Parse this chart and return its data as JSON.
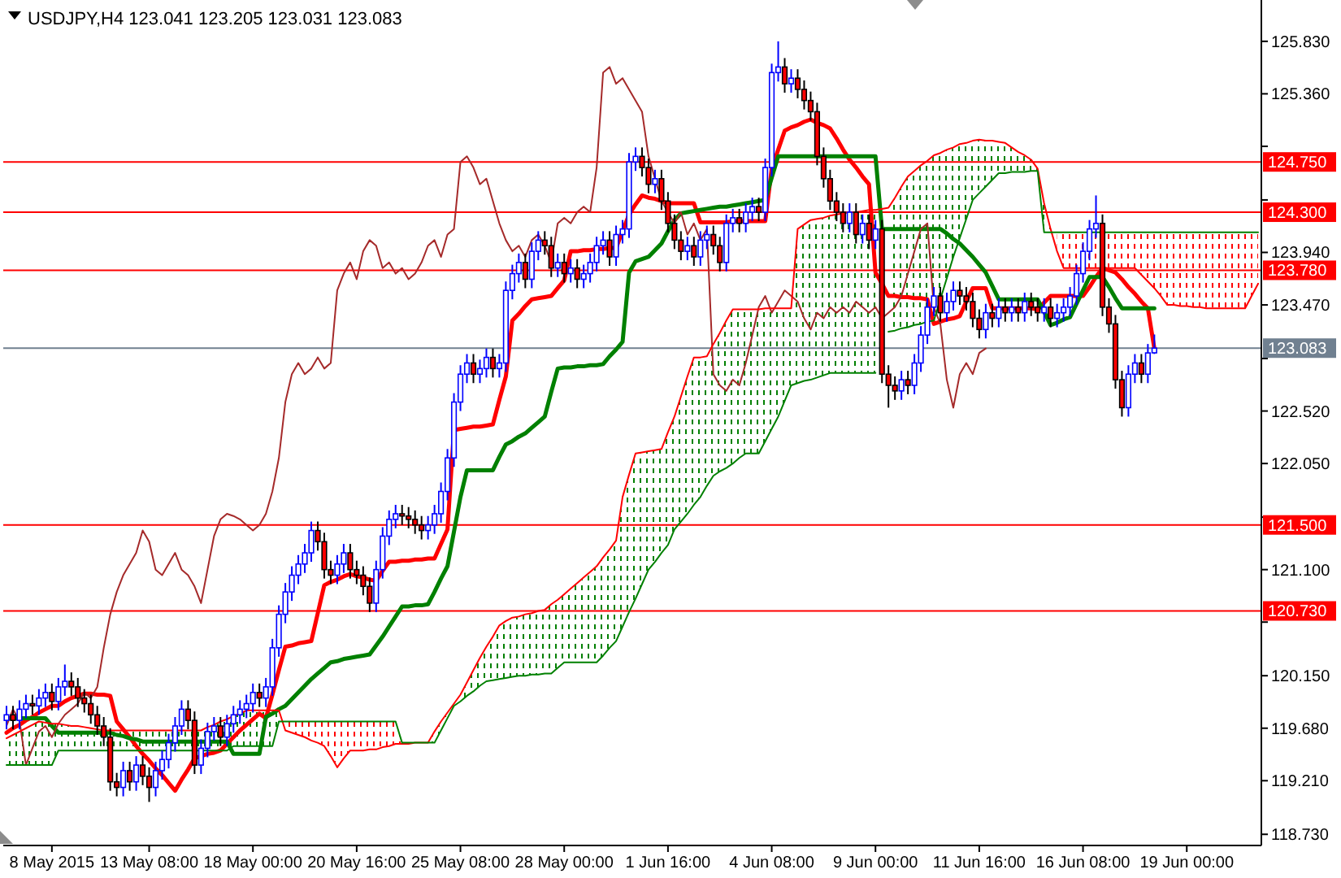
{
  "chart_data": {
    "type": "candlestick",
    "title": "USDJPY,H4 123.041 123.205 123.031 123.083",
    "categories": [
      null,
      null,
      null,
      null,
      null,
      null,
      null,
      "8 May 2015",
      null,
      null,
      null,
      null,
      null,
      null,
      null,
      null,
      null,
      null,
      null,
      null,
      null,
      null,
      "13 May 08:00",
      null,
      null,
      null,
      null,
      null,
      null,
      null,
      null,
      null,
      null,
      null,
      null,
      null,
      null,
      null,
      "18 May 00:00",
      null,
      null,
      null,
      null,
      null,
      null,
      null,
      null,
      null,
      null,
      null,
      null,
      null,
      null,
      null,
      "20 May 16:00",
      null,
      null,
      null,
      null,
      null,
      null,
      null,
      null,
      null,
      null,
      null,
      null,
      null,
      null,
      null,
      "25 May 08:00",
      null,
      null,
      null,
      null,
      null,
      null,
      null,
      null,
      null,
      null,
      null,
      null,
      null,
      null,
      null,
      "28 May 00:00",
      null,
      null,
      null,
      null,
      null,
      null,
      null,
      null,
      null,
      null,
      null,
      null,
      null,
      null,
      null,
      "1 Jun 16:00",
      null,
      null,
      null,
      null,
      null,
      null,
      null,
      null,
      null,
      null,
      null,
      null,
      null,
      null,
      null,
      "4 Jun 08:00",
      null,
      null,
      null,
      null,
      null,
      null,
      null,
      null,
      null,
      null,
      null,
      null,
      null,
      null,
      null,
      "9 Jun 00:00",
      null,
      null,
      null,
      null,
      null,
      null,
      null,
      null,
      null,
      null,
      null,
      null,
      null,
      null,
      null,
      "11 Jun 16:00",
      null,
      null,
      null,
      null,
      null,
      null,
      null,
      null,
      null,
      null,
      null,
      null,
      null,
      null,
      null,
      "16 Jun 08:00",
      null,
      null,
      null,
      null,
      null,
      null,
      null,
      null,
      null,
      null,
      null,
      null,
      null,
      null,
      null,
      "19 Jun 00:00",
      null,
      null,
      null,
      null,
      null,
      null,
      null,
      null,
      null,
      null,
      null
    ],
    "ohlc": [
      [
        119.75,
        119.88,
        119.67,
        119.8
      ],
      [
        119.8,
        119.88,
        119.67,
        119.75
      ],
      [
        119.75,
        119.93,
        119.67,
        119.85
      ],
      [
        119.85,
        119.98,
        119.77,
        119.9
      ],
      [
        119.9,
        119.98,
        119.8,
        119.88
      ],
      [
        119.88,
        120.03,
        119.8,
        119.95
      ],
      [
        119.95,
        120.08,
        119.87,
        120.0
      ],
      [
        120.0,
        120.08,
        119.84,
        119.92
      ],
      [
        119.92,
        120.13,
        119.84,
        120.05
      ],
      [
        120.05,
        120.25,
        119.97,
        120.1
      ],
      [
        120.1,
        120.18,
        119.97,
        120.05
      ],
      [
        120.05,
        120.13,
        119.87,
        119.95
      ],
      [
        119.95,
        120.03,
        119.82,
        119.9
      ],
      [
        119.9,
        119.98,
        119.72,
        119.8
      ],
      [
        119.8,
        119.88,
        119.62,
        119.7
      ],
      [
        119.7,
        119.78,
        119.52,
        119.6
      ],
      [
        119.6,
        119.68,
        119.12,
        119.2
      ],
      [
        119.2,
        119.28,
        119.07,
        119.15
      ],
      [
        119.15,
        119.38,
        119.07,
        119.3
      ],
      [
        119.3,
        119.38,
        119.12,
        119.2
      ],
      [
        119.2,
        119.43,
        119.12,
        119.35
      ],
      [
        119.35,
        119.43,
        119.17,
        119.25
      ],
      [
        119.25,
        119.33,
        119.02,
        119.15
      ],
      [
        119.15,
        119.38,
        119.07,
        119.3
      ],
      [
        119.3,
        119.48,
        119.22,
        119.4
      ],
      [
        119.4,
        119.63,
        119.32,
        119.55
      ],
      [
        119.55,
        119.78,
        119.47,
        119.7
      ],
      [
        119.7,
        119.93,
        119.62,
        119.85
      ],
      [
        119.85,
        119.93,
        119.67,
        119.75
      ],
      [
        119.75,
        119.83,
        119.27,
        119.35
      ],
      [
        119.35,
        119.58,
        119.27,
        119.5
      ],
      [
        119.5,
        119.73,
        119.42,
        119.65
      ],
      [
        119.65,
        119.78,
        119.57,
        119.7
      ],
      [
        119.7,
        119.78,
        119.52,
        119.6
      ],
      [
        119.6,
        119.8,
        119.52,
        119.72
      ],
      [
        119.72,
        119.88,
        119.64,
        119.8
      ],
      [
        119.8,
        119.93,
        119.72,
        119.85
      ],
      [
        119.85,
        119.98,
        119.77,
        119.9
      ],
      [
        119.9,
        120.08,
        119.82,
        120.0
      ],
      [
        120.0,
        120.08,
        119.87,
        119.95
      ],
      [
        119.95,
        120.13,
        119.87,
        120.05
      ],
      [
        120.05,
        120.48,
        119.97,
        120.4
      ],
      [
        120.4,
        120.78,
        120.32,
        120.7
      ],
      [
        120.7,
        120.98,
        120.62,
        120.9
      ],
      [
        120.9,
        121.13,
        120.82,
        121.05
      ],
      [
        121.05,
        121.23,
        120.97,
        121.15
      ],
      [
        121.15,
        121.33,
        121.07,
        121.25
      ],
      [
        121.25,
        121.53,
        121.17,
        121.45
      ],
      [
        121.45,
        121.53,
        121.27,
        121.35
      ],
      [
        121.35,
        121.43,
        121.02,
        121.1
      ],
      [
        121.1,
        121.18,
        120.97,
        121.05
      ],
      [
        121.05,
        121.23,
        120.97,
        121.15
      ],
      [
        121.15,
        121.33,
        121.07,
        121.25
      ],
      [
        121.25,
        121.33,
        121.02,
        121.1
      ],
      [
        121.1,
        121.18,
        120.97,
        121.05
      ],
      [
        121.05,
        121.13,
        120.87,
        120.95
      ],
      [
        120.95,
        121.03,
        120.72,
        120.8
      ],
      [
        120.8,
        121.18,
        120.72,
        121.1
      ],
      [
        121.1,
        121.48,
        121.02,
        121.4
      ],
      [
        121.4,
        121.63,
        121.32,
        121.55
      ],
      [
        121.55,
        121.68,
        121.47,
        121.6
      ],
      [
        121.6,
        121.68,
        121.5,
        121.58
      ],
      [
        121.58,
        121.66,
        121.47,
        121.55
      ],
      [
        121.55,
        121.63,
        121.42,
        121.5
      ],
      [
        121.5,
        121.58,
        121.37,
        121.45
      ],
      [
        121.45,
        121.58,
        121.37,
        121.5
      ],
      [
        121.5,
        121.68,
        121.42,
        121.6
      ],
      [
        121.6,
        121.88,
        121.52,
        121.8
      ],
      [
        121.8,
        122.18,
        121.72,
        122.1
      ],
      [
        122.1,
        122.68,
        122.02,
        122.6
      ],
      [
        122.6,
        122.93,
        122.52,
        122.85
      ],
      [
        122.85,
        123.03,
        122.77,
        122.95
      ],
      [
        122.95,
        123.03,
        122.77,
        122.85
      ],
      [
        122.85,
        122.98,
        122.77,
        122.9
      ],
      [
        122.9,
        123.08,
        122.82,
        123.0
      ],
      [
        123.0,
        123.08,
        122.82,
        122.9
      ],
      [
        122.9,
        123.03,
        122.82,
        122.95
      ],
      [
        122.95,
        123.68,
        122.87,
        123.6
      ],
      [
        123.6,
        123.83,
        123.52,
        123.75
      ],
      [
        123.75,
        123.93,
        123.67,
        123.85
      ],
      [
        123.85,
        123.93,
        123.62,
        123.7
      ],
      [
        123.7,
        124.03,
        123.62,
        123.95
      ],
      [
        123.95,
        124.13,
        123.87,
        124.05
      ],
      [
        124.05,
        124.13,
        123.92,
        124.0
      ],
      [
        124.0,
        124.08,
        123.72,
        123.8
      ],
      [
        123.8,
        123.93,
        123.72,
        123.85
      ],
      [
        123.85,
        123.93,
        123.67,
        123.75
      ],
      [
        123.75,
        123.88,
        123.67,
        123.8
      ],
      [
        123.8,
        123.88,
        123.62,
        123.7
      ],
      [
        123.7,
        123.83,
        123.62,
        123.75
      ],
      [
        123.75,
        123.93,
        123.67,
        123.85
      ],
      [
        123.85,
        124.08,
        123.77,
        124.0
      ],
      [
        124.0,
        124.13,
        123.92,
        124.05
      ],
      [
        124.05,
        124.13,
        123.82,
        123.9
      ],
      [
        123.9,
        124.18,
        123.82,
        124.1
      ],
      [
        124.1,
        124.23,
        124.02,
        124.15
      ],
      [
        124.15,
        124.83,
        124.07,
        124.75
      ],
      [
        124.75,
        124.88,
        124.67,
        124.8
      ],
      [
        124.8,
        124.88,
        124.62,
        124.7
      ],
      [
        124.7,
        124.78,
        124.47,
        124.55
      ],
      [
        124.55,
        124.68,
        124.47,
        124.6
      ],
      [
        124.6,
        124.68,
        124.32,
        124.4
      ],
      [
        124.4,
        124.48,
        124.12,
        124.2
      ],
      [
        124.2,
        124.28,
        123.97,
        124.05
      ],
      [
        124.05,
        124.13,
        123.87,
        123.95
      ],
      [
        123.95,
        124.08,
        123.87,
        124.0
      ],
      [
        124.0,
        124.08,
        123.82,
        123.9
      ],
      [
        123.9,
        124.13,
        123.82,
        124.05
      ],
      [
        124.05,
        124.18,
        123.97,
        124.1
      ],
      [
        124.1,
        124.18,
        123.92,
        124.0
      ],
      [
        124.0,
        124.08,
        123.77,
        123.85
      ],
      [
        123.85,
        124.28,
        123.77,
        124.2
      ],
      [
        124.2,
        124.33,
        124.12,
        124.25
      ],
      [
        124.25,
        124.33,
        124.12,
        124.2
      ],
      [
        124.2,
        124.38,
        124.12,
        124.3
      ],
      [
        124.3,
        124.43,
        124.22,
        124.35
      ],
      [
        124.35,
        124.43,
        124.22,
        124.3
      ],
      [
        124.3,
        124.78,
        124.22,
        124.7
      ],
      [
        124.7,
        125.63,
        124.62,
        125.55
      ],
      [
        125.55,
        125.83,
        125.47,
        125.6
      ],
      [
        125.6,
        125.68,
        125.37,
        125.45
      ],
      [
        125.45,
        125.58,
        125.37,
        125.5
      ],
      [
        125.5,
        125.58,
        125.32,
        125.4
      ],
      [
        125.4,
        125.48,
        125.22,
        125.3
      ],
      [
        125.3,
        125.38,
        125.12,
        125.2
      ],
      [
        125.2,
        125.28,
        124.72,
        124.8
      ],
      [
        124.8,
        124.88,
        124.52,
        124.6
      ],
      [
        124.6,
        124.68,
        124.32,
        124.4
      ],
      [
        124.4,
        124.48,
        124.22,
        124.3
      ],
      [
        124.3,
        124.38,
        124.12,
        124.2
      ],
      [
        124.2,
        124.38,
        124.12,
        124.3
      ],
      [
        124.3,
        124.38,
        124.02,
        124.1
      ],
      [
        124.1,
        124.28,
        124.02,
        124.2
      ],
      [
        124.2,
        124.28,
        123.97,
        124.05
      ],
      [
        124.05,
        124.23,
        123.97,
        124.15
      ],
      [
        124.15,
        124.23,
        122.77,
        122.85
      ],
      [
        122.85,
        122.93,
        122.55,
        122.75
      ],
      [
        122.75,
        122.83,
        122.62,
        122.7
      ],
      [
        122.7,
        122.88,
        122.62,
        122.8
      ],
      [
        122.8,
        122.88,
        122.67,
        122.75
      ],
      [
        122.75,
        123.03,
        122.67,
        122.95
      ],
      [
        122.95,
        123.28,
        122.87,
        123.2
      ],
      [
        123.2,
        123.53,
        123.12,
        123.45
      ],
      [
        123.45,
        123.63,
        123.37,
        123.55
      ],
      [
        123.55,
        123.63,
        123.32,
        123.4
      ],
      [
        123.4,
        123.58,
        123.32,
        123.5
      ],
      [
        123.5,
        123.68,
        123.42,
        123.6
      ],
      [
        123.6,
        123.68,
        123.47,
        123.55
      ],
      [
        123.55,
        123.63,
        123.42,
        123.5
      ],
      [
        123.5,
        123.58,
        123.27,
        123.35
      ],
      [
        123.35,
        123.43,
        123.17,
        123.25
      ],
      [
        123.25,
        123.48,
        123.17,
        123.4
      ],
      [
        123.4,
        123.48,
        123.27,
        123.35
      ],
      [
        123.35,
        123.53,
        123.27,
        123.45
      ],
      [
        123.45,
        123.53,
        123.32,
        123.4
      ],
      [
        123.4,
        123.53,
        123.32,
        123.45
      ],
      [
        123.45,
        123.53,
        123.32,
        123.4
      ],
      [
        123.4,
        123.58,
        123.32,
        123.5
      ],
      [
        123.5,
        123.58,
        123.37,
        123.45
      ],
      [
        123.45,
        123.53,
        123.32,
        123.4
      ],
      [
        123.4,
        123.53,
        123.32,
        123.45
      ],
      [
        123.45,
        123.53,
        123.27,
        123.35
      ],
      [
        123.35,
        123.48,
        123.27,
        123.4
      ],
      [
        123.4,
        123.53,
        123.32,
        123.45
      ],
      [
        123.45,
        123.63,
        123.37,
        123.55
      ],
      [
        123.55,
        123.83,
        123.47,
        123.75
      ],
      [
        123.75,
        124.03,
        123.67,
        123.95
      ],
      [
        123.95,
        124.23,
        123.87,
        124.15
      ],
      [
        124.15,
        124.45,
        124.07,
        124.2
      ],
      [
        124.2,
        124.28,
        123.37,
        123.45
      ],
      [
        123.45,
        123.53,
        123.22,
        123.3
      ],
      [
        123.3,
        123.38,
        122.72,
        122.8
      ],
      [
        122.8,
        122.88,
        122.47,
        122.55
      ],
      [
        122.55,
        122.93,
        122.47,
        122.85
      ],
      [
        122.85,
        123.03,
        122.77,
        122.95
      ],
      [
        122.95,
        123.03,
        122.77,
        122.85
      ],
      [
        122.85,
        123.12,
        122.77,
        123.04
      ],
      [
        123.041,
        123.205,
        123.031,
        123.083
      ],
      null,
      null,
      null,
      null,
      null,
      null,
      null,
      null,
      null,
      null,
      null,
      null,
      null,
      null,
      null,
      null
    ],
    "series": [
      {
        "type": "line",
        "color": "#ff0000",
        "values": [
          119.64,
          119.68,
          119.71,
          119.75,
          119.78,
          119.82,
          119.85,
          119.88,
          119.88,
          119.92,
          119.95,
          119.97,
          119.99,
          119.99,
          119.98,
          119.98,
          119.97,
          119.74,
          119.67,
          119.6,
          119.52,
          119.45,
          119.39,
          119.32,
          119.26,
          119.19,
          119.12,
          119.22,
          119.31,
          119.41,
          119.43,
          119.45,
          119.46,
          119.48,
          119.54,
          119.6,
          119.66,
          119.71,
          119.76,
          119.81,
          119.77,
          119.98,
          120.2,
          120.41,
          120.42,
          120.44,
          120.45,
          120.46,
          120.71,
          120.96,
          120.99,
          121.01,
          121.04,
          121.06,
          121.04,
          121.03,
          121.01,
          121.0,
          121.09,
          121.17,
          121.17,
          121.18,
          121.18,
          121.19,
          121.19,
          121.2,
          121.2,
          121.33,
          121.46,
          122.35,
          122.36,
          122.37,
          122.38,
          122.38,
          122.39,
          122.4,
          122.62,
          122.83,
          123.33,
          123.39,
          123.46,
          123.52,
          123.53,
          123.54,
          123.55,
          123.62,
          123.69,
          123.95,
          123.95,
          123.96,
          123.96,
          123.97,
          123.97,
          123.98,
          123.98,
          124.13,
          124.28,
          124.37,
          124.45,
          124.43,
          124.42,
          124.4,
          124.38,
          124.38,
          124.38,
          124.38,
          124.38,
          124.21,
          124.21,
          124.21,
          124.21,
          124.21,
          124.22,
          124.22,
          124.22,
          124.22,
          124.22,
          124.22,
          124.69,
          124.86,
          125.03,
          125.06,
          125.08,
          125.11,
          125.13,
          125.1,
          125.08,
          125.05,
          124.96,
          124.86,
          124.77,
          124.7,
          124.62,
          124.55,
          123.76,
          123.66,
          123.55,
          123.55,
          123.54,
          123.54,
          123.53,
          123.53,
          123.52,
          123.3,
          123.32,
          123.34,
          123.35,
          123.37,
          123.5,
          123.62,
          123.62,
          123.62,
          123.44,
          123.44,
          123.44,
          123.44,
          123.44,
          123.44,
          123.44,
          123.43,
          123.49,
          123.55,
          123.55,
          123.55,
          123.55,
          123.55,
          123.55,
          123.63,
          123.72,
          123.8,
          123.78,
          123.76,
          123.7,
          123.63,
          123.57,
          123.5,
          123.44,
          123.08,
          null,
          null,
          null,
          null,
          null,
          null,
          null,
          null,
          null,
          null,
          null,
          null,
          null,
          null,
          null,
          null
        ]
      },
      {
        "type": "line",
        "color": "#008000",
        "values": [
          119.77,
          119.77,
          119.77,
          119.77,
          119.77,
          119.77,
          119.77,
          119.7,
          119.64,
          119.64,
          119.64,
          119.64,
          119.64,
          119.64,
          119.64,
          119.64,
          119.64,
          119.62,
          119.61,
          119.59,
          119.58,
          119.56,
          119.56,
          119.56,
          119.56,
          119.56,
          119.56,
          119.56,
          119.56,
          119.56,
          119.56,
          119.56,
          119.56,
          119.56,
          119.56,
          119.45,
          119.45,
          119.45,
          119.45,
          119.45,
          119.78,
          119.81,
          119.85,
          119.88,
          119.94,
          120.0,
          120.06,
          120.12,
          120.17,
          120.22,
          120.27,
          120.28,
          120.3,
          120.31,
          120.32,
          120.33,
          120.34,
          120.42,
          120.5,
          120.59,
          120.68,
          120.77,
          120.77,
          120.78,
          120.78,
          120.79,
          120.9,
          121.02,
          121.13,
          121.44,
          121.75,
          121.99,
          121.99,
          121.99,
          121.99,
          121.99,
          122.11,
          122.22,
          122.25,
          122.29,
          122.32,
          122.37,
          122.42,
          122.47,
          122.69,
          122.9,
          122.91,
          122.91,
          122.92,
          122.92,
          122.93,
          122.93,
          122.94,
          123.01,
          123.07,
          123.14,
          123.76,
          123.86,
          123.88,
          123.9,
          123.96,
          124.02,
          124.13,
          124.23,
          124.29,
          124.3,
          124.31,
          124.32,
          124.33,
          124.34,
          124.35,
          124.35,
          124.36,
          124.37,
          124.38,
          124.39,
          124.4,
          124.41,
          124.61,
          124.8,
          124.8,
          124.8,
          124.8,
          124.8,
          124.8,
          124.8,
          124.8,
          124.8,
          124.8,
          124.8,
          124.8,
          124.8,
          124.8,
          124.8,
          124.8,
          124.15,
          124.15,
          124.15,
          124.15,
          124.15,
          124.15,
          124.15,
          124.15,
          124.15,
          124.15,
          124.11,
          124.06,
          124.02,
          123.96,
          123.9,
          123.83,
          123.76,
          123.64,
          123.52,
          123.52,
          123.52,
          123.52,
          123.52,
          123.52,
          123.52,
          123.41,
          123.29,
          123.31,
          123.34,
          123.36,
          123.48,
          123.6,
          123.72,
          123.72,
          123.72,
          123.63,
          123.53,
          123.44,
          123.44,
          123.44,
          123.44,
          123.44,
          123.44,
          null,
          null,
          null,
          null,
          null,
          null,
          null,
          null,
          null,
          null,
          null,
          null,
          null,
          null,
          null,
          null
        ]
      },
      {
        "type": "line",
        "color": "#a52a2a",
        "values": [
          119.7,
          119.85,
          119.75,
          119.35,
          119.5,
          119.65,
          119.7,
          119.6,
          119.72,
          119.8,
          119.85,
          119.9,
          120.0,
          119.95,
          120.05,
          120.4,
          120.7,
          120.9,
          121.05,
          121.15,
          121.25,
          121.45,
          121.35,
          121.1,
          121.05,
          121.15,
          121.25,
          121.1,
          121.05,
          120.95,
          120.8,
          121.1,
          121.4,
          121.55,
          121.6,
          121.58,
          121.55,
          121.5,
          121.45,
          121.5,
          121.6,
          121.8,
          122.1,
          122.6,
          122.85,
          122.95,
          122.85,
          122.9,
          123.0,
          122.9,
          122.95,
          123.6,
          123.75,
          123.85,
          123.7,
          123.95,
          124.05,
          124.0,
          123.8,
          123.85,
          123.75,
          123.8,
          123.7,
          123.75,
          123.85,
          124.0,
          124.05,
          123.9,
          124.1,
          124.15,
          124.75,
          124.8,
          124.7,
          124.55,
          124.6,
          124.4,
          124.2,
          124.05,
          123.95,
          124.0,
          123.9,
          124.05,
          124.1,
          124.0,
          123.85,
          124.2,
          124.25,
          124.2,
          124.3,
          124.35,
          124.3,
          124.7,
          125.55,
          125.6,
          125.45,
          125.5,
          125.4,
          125.3,
          125.2,
          124.8,
          124.6,
          124.4,
          124.3,
          124.2,
          124.3,
          124.1,
          124.2,
          124.05,
          124.15,
          122.85,
          122.75,
          122.7,
          122.8,
          122.75,
          122.95,
          123.2,
          123.45,
          123.55,
          123.4,
          123.5,
          123.6,
          123.55,
          123.5,
          123.35,
          123.25,
          123.4,
          123.35,
          123.45,
          123.4,
          123.45,
          123.4,
          123.5,
          123.45,
          123.4,
          123.45,
          123.35,
          123.4,
          123.45,
          123.55,
          123.75,
          123.95,
          124.15,
          124.2,
          123.45,
          123.3,
          122.8,
          122.55,
          122.85,
          122.95,
          122.85,
          123.04,
          123.08,
          null,
          null,
          null,
          null,
          null,
          null,
          null,
          null,
          null,
          null,
          null,
          null,
          null,
          null,
          null,
          null,
          null,
          null,
          null,
          null,
          null,
          null,
          null,
          null,
          null,
          null,
          null,
          null,
          null,
          null,
          null,
          null,
          null,
          null,
          null,
          null,
          null,
          null,
          null,
          null,
          null,
          null
        ]
      },
      {
        "type": "line",
        "color": "#ff0000",
        "values": [
          119.59,
          119.62,
          119.65,
          119.68,
          119.71,
          119.74,
          119.73,
          119.72,
          119.72,
          119.71,
          119.7,
          119.7,
          119.69,
          119.68,
          119.67,
          119.66,
          119.66,
          119.66,
          119.66,
          119.66,
          119.66,
          119.66,
          119.66,
          119.66,
          119.66,
          119.66,
          119.66,
          119.66,
          119.66,
          119.66,
          119.66,
          119.69,
          119.71,
          119.74,
          119.76,
          119.79,
          119.81,
          119.84,
          119.84,
          119.84,
          119.84,
          119.84,
          119.84,
          119.66,
          119.64,
          119.62,
          119.6,
          119.57,
          119.55,
          119.52,
          119.43,
          119.33,
          119.41,
          119.48,
          119.48,
          119.48,
          119.49,
          119.49,
          119.51,
          119.52,
          119.54,
          119.54,
          119.54,
          119.55,
          119.55,
          119.55,
          119.65,
          119.74,
          119.82,
          119.9,
          119.98,
          120.09,
          120.2,
          120.31,
          120.41,
          120.5,
          120.6,
          120.64,
          120.67,
          120.68,
          120.7,
          120.71,
          120.73,
          120.74,
          120.79,
          120.83,
          120.88,
          120.93,
          120.98,
          121.03,
          121.08,
          121.13,
          121.21,
          121.28,
          121.36,
          121.75,
          121.95,
          122.14,
          122.15,
          122.16,
          122.17,
          122.18,
          122.33,
          122.47,
          122.65,
          122.83,
          123.0,
          123.0,
          123.01,
          123.12,
          123.22,
          123.33,
          123.43,
          123.43,
          123.43,
          123.43,
          123.43,
          123.44,
          123.44,
          123.44,
          123.44,
          123.44,
          124.15,
          124.19,
          124.23,
          124.24,
          124.25,
          124.27,
          124.28,
          124.29,
          124.3,
          124.3,
          124.31,
          124.32,
          124.32,
          124.33,
          124.34,
          124.43,
          124.53,
          124.62,
          124.67,
          124.72,
          124.76,
          124.81,
          124.83,
          124.86,
          124.88,
          124.91,
          124.92,
          124.94,
          124.95,
          124.94,
          124.94,
          124.93,
          124.92,
          124.88,
          124.84,
          124.81,
          124.77,
          124.69,
          124.38,
          124.15,
          123.95,
          123.8,
          123.8,
          123.8,
          123.8,
          123.8,
          123.8,
          123.8,
          123.8,
          123.8,
          123.8,
          123.8,
          123.8,
          123.74,
          123.68,
          123.62,
          123.55,
          123.47,
          123.47,
          123.46,
          123.46,
          123.45,
          123.45,
          123.44,
          123.44,
          123.44,
          123.44,
          123.44,
          123.44,
          123.44,
          123.55,
          123.66
        ]
      },
      {
        "type": "line",
        "color": "#008000",
        "values": [
          119.35,
          119.35,
          119.35,
          119.35,
          119.35,
          119.35,
          119.35,
          119.35,
          119.48,
          119.48,
          119.48,
          119.48,
          119.48,
          119.48,
          119.48,
          119.48,
          119.48,
          119.48,
          119.48,
          119.48,
          119.48,
          119.48,
          119.48,
          119.48,
          119.48,
          119.48,
          119.48,
          119.48,
          119.48,
          119.48,
          119.48,
          119.48,
          119.48,
          119.48,
          119.48,
          119.52,
          119.52,
          119.52,
          119.52,
          119.52,
          119.52,
          119.52,
          119.74,
          119.74,
          119.74,
          119.74,
          119.74,
          119.74,
          119.74,
          119.74,
          119.74,
          119.74,
          119.74,
          119.74,
          119.74,
          119.74,
          119.74,
          119.74,
          119.74,
          119.74,
          119.74,
          119.55,
          119.55,
          119.55,
          119.55,
          119.55,
          119.55,
          119.66,
          119.77,
          119.88,
          119.92,
          119.97,
          120.01,
          120.06,
          120.1,
          120.11,
          120.12,
          120.13,
          120.14,
          120.15,
          120.15,
          120.16,
          120.16,
          120.17,
          120.17,
          120.22,
          120.27,
          120.27,
          120.27,
          120.27,
          120.27,
          120.27,
          120.33,
          120.4,
          120.46,
          120.59,
          120.72,
          120.84,
          120.97,
          121.1,
          121.17,
          121.25,
          121.32,
          121.46,
          121.53,
          121.6,
          121.68,
          121.75,
          121.85,
          121.94,
          121.98,
          122.01,
          122.05,
          122.1,
          122.14,
          122.14,
          122.14,
          122.25,
          122.36,
          122.47,
          122.61,
          122.75,
          122.77,
          122.79,
          122.8,
          122.82,
          122.84,
          122.86,
          122.86,
          122.86,
          122.86,
          122.86,
          122.86,
          122.86,
          122.86,
          null,
          123.23,
          123.24,
          123.26,
          123.27,
          123.29,
          123.3,
          123.32,
          123.33,
          123.52,
          123.71,
          123.9,
          124.07,
          124.24,
          124.41,
          124.47,
          124.53,
          124.59,
          124.65,
          124.65,
          124.66,
          124.66,
          124.66,
          124.67,
          124.67,
          124.12,
          124.12,
          124.12,
          124.12,
          124.12,
          124.12,
          124.12,
          124.12,
          124.12,
          124.12,
          124.12,
          124.12,
          124.12,
          124.12,
          124.12,
          124.12,
          124.12,
          124.12,
          124.12,
          124.12,
          124.12,
          124.12,
          124.12,
          124.12,
          124.12,
          124.12,
          124.12,
          124.12,
          124.12,
          124.12,
          124.12,
          124.12,
          124.12,
          124.12
        ]
      }
    ],
    "ref_lines": [
      {
        "axis": "y",
        "value": 124.75,
        "label": "124.750",
        "color": "#ff0000"
      },
      {
        "axis": "y",
        "value": 124.3,
        "label": "124.300",
        "color": "#ff0000"
      },
      {
        "axis": "y",
        "value": 123.78,
        "label": "123.780",
        "color": "#ff0000"
      },
      {
        "axis": "y",
        "value": 121.5,
        "label": "121.500",
        "color": "#ff0000"
      },
      {
        "axis": "y",
        "value": 120.73,
        "label": "120.730",
        "color": "#ff0000"
      },
      {
        "axis": "y",
        "value": 123.083,
        "label": "123.083",
        "color": "#708090"
      }
    ],
    "ylim": [
      118.63,
      126.2
    ],
    "yticks": [
      {
        "value": 125.83,
        "label": "125.830"
      },
      {
        "value": 125.36,
        "label": "125.360"
      },
      {
        "value": 124.89,
        "label": null
      },
      {
        "value": 124.41,
        "label": null
      },
      {
        "value": 123.94,
        "label": "123.940"
      },
      {
        "value": 123.47,
        "label": "123.470"
      },
      {
        "value": 122.99,
        "label": null
      },
      {
        "value": 122.52,
        "label": "122.520"
      },
      {
        "value": 122.05,
        "label": "122.050"
      },
      {
        "value": 121.57,
        "label": null
      },
      {
        "value": 121.1,
        "label": "121.100"
      },
      {
        "value": 120.63,
        "label": null
      },
      {
        "value": 120.15,
        "label": "120.150"
      },
      {
        "value": 119.68,
        "label": "119.680"
      },
      {
        "value": 119.21,
        "label": "119.210"
      },
      {
        "value": 118.73,
        "label": "118.730"
      }
    ]
  }
}
